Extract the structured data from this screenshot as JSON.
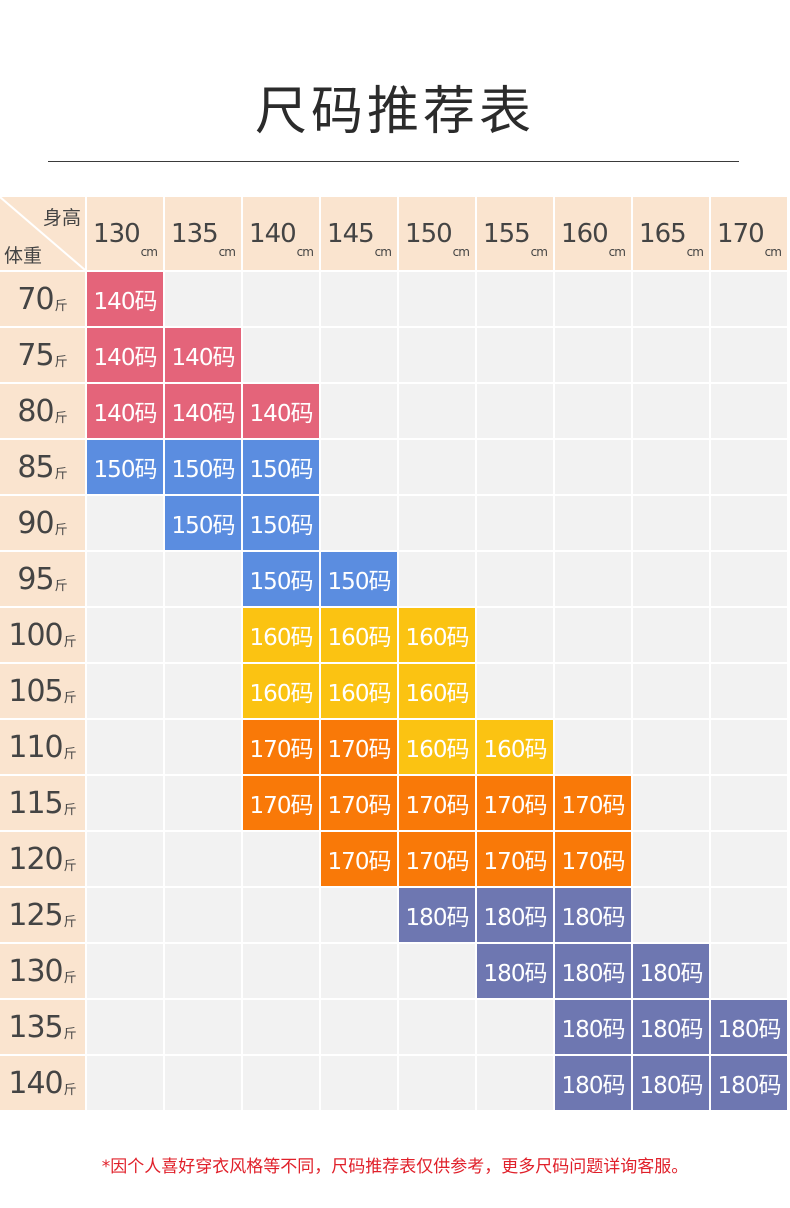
{
  "title": "尺码推荐表",
  "header": {
    "corner_height_label": "身高",
    "corner_weight_label": "体重",
    "height_unit": "cm",
    "weight_unit": "斤",
    "heights": [
      "130",
      "135",
      "140",
      "145",
      "150",
      "155",
      "160",
      "165",
      "170"
    ]
  },
  "size_colors": {
    "140码": "#e4647a",
    "150码": "#5b8de0",
    "160码": "#fbc312",
    "170码": "#f97908",
    "180码": "#6e77b1"
  },
  "colors": {
    "header_bg": "#fae4cf",
    "empty_bg": "#f2f2f2",
    "note": "#e0202a"
  },
  "rows": [
    {
      "weight": "70",
      "cells": [
        "140码",
        "",
        "",
        "",
        "",
        "",
        "",
        "",
        ""
      ]
    },
    {
      "weight": "75",
      "cells": [
        "140码",
        "140码",
        "",
        "",
        "",
        "",
        "",
        "",
        ""
      ]
    },
    {
      "weight": "80",
      "cells": [
        "140码",
        "140码",
        "140码",
        "",
        "",
        "",
        "",
        "",
        ""
      ]
    },
    {
      "weight": "85",
      "cells": [
        "150码",
        "150码",
        "150码",
        "",
        "",
        "",
        "",
        "",
        ""
      ]
    },
    {
      "weight": "90",
      "cells": [
        "",
        "150码",
        "150码",
        "",
        "",
        "",
        "",
        "",
        ""
      ]
    },
    {
      "weight": "95",
      "cells": [
        "",
        "",
        "150码",
        "150码",
        "",
        "",
        "",
        "",
        ""
      ]
    },
    {
      "weight": "100",
      "cells": [
        "",
        "",
        "160码",
        "160码",
        "160码",
        "",
        "",
        "",
        ""
      ]
    },
    {
      "weight": "105",
      "cells": [
        "",
        "",
        "160码",
        "160码",
        "160码",
        "",
        "",
        "",
        ""
      ]
    },
    {
      "weight": "110",
      "cells": [
        "",
        "",
        "170码",
        "170码",
        "160码",
        "160码",
        "",
        "",
        ""
      ]
    },
    {
      "weight": "115",
      "cells": [
        "",
        "",
        "170码",
        "170码",
        "170码",
        "170码",
        "170码",
        "",
        ""
      ]
    },
    {
      "weight": "120",
      "cells": [
        "",
        "",
        "",
        "170码",
        "170码",
        "170码",
        "170码",
        "",
        ""
      ]
    },
    {
      "weight": "125",
      "cells": [
        "",
        "",
        "",
        "",
        "180码",
        "180码",
        "180码",
        "",
        ""
      ]
    },
    {
      "weight": "130",
      "cells": [
        "",
        "",
        "",
        "",
        "",
        "180码",
        "180码",
        "180码",
        ""
      ]
    },
    {
      "weight": "135",
      "cells": [
        "",
        "",
        "",
        "",
        "",
        "",
        "180码",
        "180码",
        "180码"
      ]
    },
    {
      "weight": "140",
      "cells": [
        "",
        "",
        "",
        "",
        "",
        "",
        "180码",
        "180码",
        "180码"
      ]
    }
  ],
  "note": "*因个人喜好穿衣风格等不同，尺码推荐表仅供参考，更多尺码问题详询客服。"
}
